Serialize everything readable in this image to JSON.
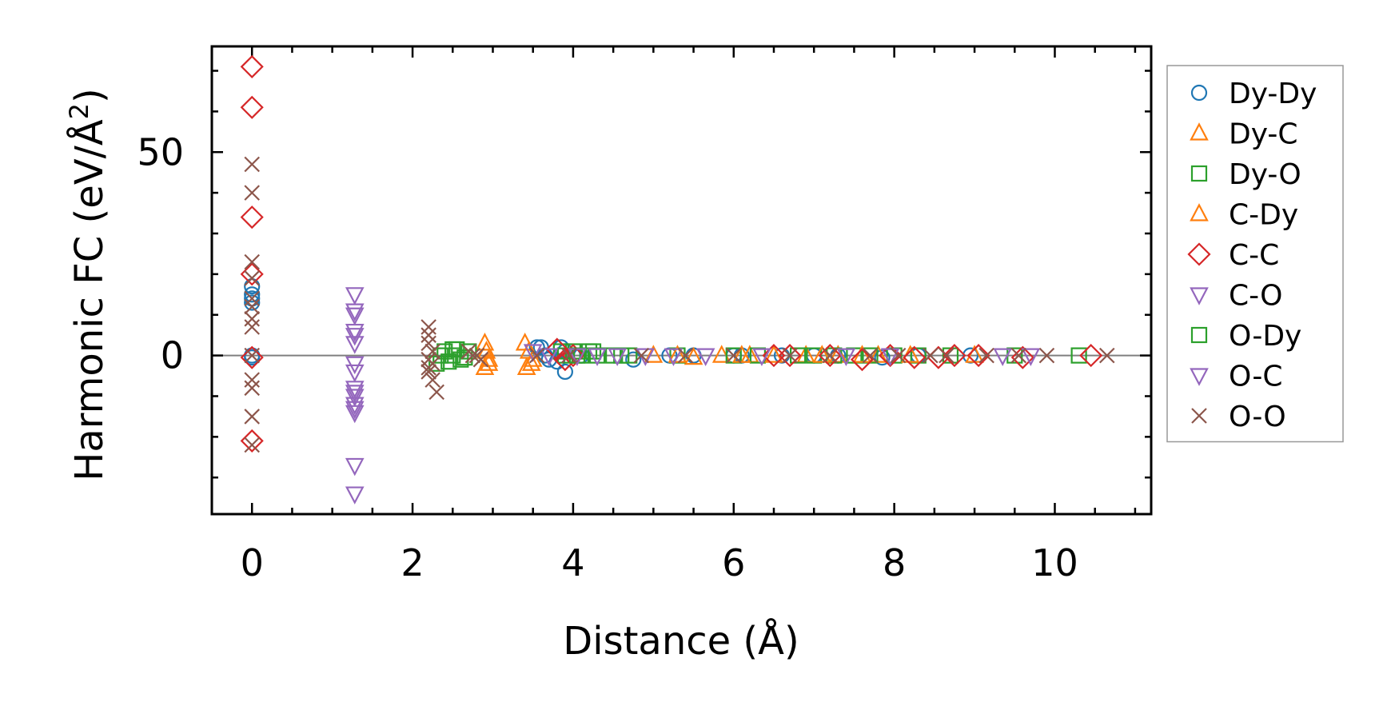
{
  "chart_data": {
    "type": "scatter",
    "title": "",
    "xlabel": "Distance (Å)",
    "ylabel_main": "Harmonic FC (eV/Å",
    "ylabel_sup": "2",
    "ylabel_close": ")",
    "xlim": [
      -0.5,
      11.2
    ],
    "ylim": [
      -39,
      76
    ],
    "xticks": [
      0,
      2,
      4,
      6,
      8,
      10
    ],
    "xtick_labels": [
      "0",
      "2",
      "4",
      "6",
      "8",
      "10"
    ],
    "yticks": [
      0,
      50
    ],
    "ytick_labels": [
      "0",
      "50"
    ],
    "zero_line": true,
    "grid": false,
    "legend_placement": "outside-right",
    "series": [
      {
        "name": "Dy-Dy",
        "marker": "circle",
        "color": "#1f77b4",
        "x": [
          0,
          0,
          0,
          0,
          0,
          0,
          3.55,
          3.6,
          3.65,
          3.7,
          3.8,
          3.85,
          3.9,
          3.9,
          4.0,
          4.1,
          4.75,
          5.2,
          5.5,
          6.0,
          6.1,
          6.6,
          7.0,
          7.3,
          7.85,
          8.3,
          8.95
        ],
        "y": [
          0,
          -0.5,
          13,
          14,
          15,
          17,
          2,
          2,
          0,
          -1,
          -1.5,
          2,
          -4,
          1,
          0,
          0,
          -1,
          0,
          0,
          0,
          0,
          0,
          0,
          0,
          -0.5,
          0,
          0
        ]
      },
      {
        "name": "Dy-C",
        "marker": "triangle-up",
        "color": "#ff7f0e",
        "x": [
          2.9,
          2.92,
          2.95,
          2.9,
          2.95,
          3.4,
          3.45,
          3.5,
          3.42,
          3.48,
          5.0,
          5.5,
          5.85,
          6.2,
          6.9,
          7.3,
          7.8
        ],
        "y": [
          3,
          1,
          -1,
          -3,
          -2,
          3,
          1,
          -1,
          -3,
          -2,
          0,
          -0.5,
          0,
          0,
          0,
          0,
          0
        ]
      },
      {
        "name": "Dy-O",
        "marker": "square",
        "color": "#2ca02c",
        "x": [
          2.3,
          2.4,
          2.5,
          2.6,
          2.7,
          2.45,
          2.55,
          3.85,
          3.9,
          4.0,
          4.1,
          4.2,
          4.3,
          4.5,
          4.7,
          5.3,
          6.0,
          6.3,
          6.8,
          7.0,
          7.25,
          7.5,
          7.7,
          8.0,
          8.3,
          8.7,
          9.5,
          10.3
        ],
        "y": [
          -2,
          1,
          0,
          -1,
          1,
          -1.5,
          1.5,
          1,
          0,
          1,
          0,
          1,
          0,
          0,
          0,
          0,
          0,
          0,
          0,
          0,
          0,
          0,
          0,
          0,
          0,
          0,
          0,
          0
        ]
      },
      {
        "name": "C-Dy",
        "marker": "triangle-up",
        "color": "#ff7f0e",
        "x": [
          5.3,
          6.1,
          6.5,
          7.1,
          7.6,
          8.2,
          9.0
        ],
        "y": [
          0,
          0,
          0,
          0,
          0,
          0,
          0
        ]
      },
      {
        "name": "C-C",
        "marker": "diamond",
        "color": "#d62728",
        "x": [
          0,
          0,
          0,
          0,
          0,
          0,
          3.8,
          3.9,
          4.0,
          6.5,
          6.7,
          7.2,
          7.6,
          7.95,
          8.25,
          8.55,
          8.75,
          9.05,
          9.6,
          10.45
        ],
        "y": [
          71,
          61,
          34,
          20,
          -0.5,
          -21,
          1.5,
          -1,
          0,
          0,
          0,
          0,
          -1,
          0,
          -0.5,
          -0.5,
          0,
          0,
          -0.5,
          0
        ]
      },
      {
        "name": "C-O",
        "marker": "triangle-down",
        "color": "#9467bd",
        "x": [
          1.28,
          1.28,
          1.28,
          1.28,
          1.28,
          1.28,
          1.28,
          1.28,
          1.28,
          1.28,
          1.28,
          1.28,
          1.28,
          1.28,
          1.28,
          1.28
        ],
        "y": [
          15,
          11,
          10,
          6,
          5,
          3,
          -2,
          -4,
          -8,
          -9,
          -10,
          -12,
          -13,
          -14,
          -27,
          -34
        ]
      },
      {
        "name": "O-Dy",
        "marker": "square",
        "color": "#2ca02c",
        "x": [
          2.35,
          2.5,
          2.65,
          4.05,
          4.25,
          4.6
        ],
        "y": [
          0,
          1.5,
          -0.5,
          0,
          1,
          0
        ]
      },
      {
        "name": "O-C",
        "marker": "triangle-down",
        "color": "#9467bd",
        "x": [
          3.5,
          3.7,
          4.05,
          4.3,
          4.55,
          4.9,
          5.25,
          5.65,
          6.35,
          7.4,
          7.95,
          9.35,
          9.7
        ],
        "y": [
          1,
          0,
          0,
          0,
          0,
          0,
          0,
          0,
          0,
          0,
          0,
          0,
          0
        ]
      },
      {
        "name": "O-O",
        "marker": "x",
        "color": "#8c564b",
        "x": [
          0,
          0,
          0,
          0,
          0,
          0,
          0,
          0,
          0,
          0,
          0,
          0,
          0,
          2.2,
          2.2,
          2.2,
          2.25,
          2.2,
          2.25,
          2.2,
          2.3,
          2.25,
          2.2,
          2.7,
          2.8,
          2.85,
          2.75,
          3.55,
          3.95,
          4.85,
          5.4,
          6.0,
          6.7,
          7.2,
          7.7,
          8.05,
          8.45,
          8.65,
          9.15,
          9.55,
          9.9,
          10.65
        ],
        "y": [
          47,
          40,
          23,
          19,
          14,
          12,
          9,
          7,
          -6,
          -8,
          -15,
          -22,
          0,
          7,
          5,
          3,
          1,
          -1,
          -2,
          -4,
          -9,
          -6,
          -3,
          1,
          0,
          -1,
          0,
          0,
          0,
          0,
          0,
          0,
          0,
          0,
          0,
          0,
          0,
          0,
          0,
          0,
          0,
          0
        ]
      }
    ]
  }
}
